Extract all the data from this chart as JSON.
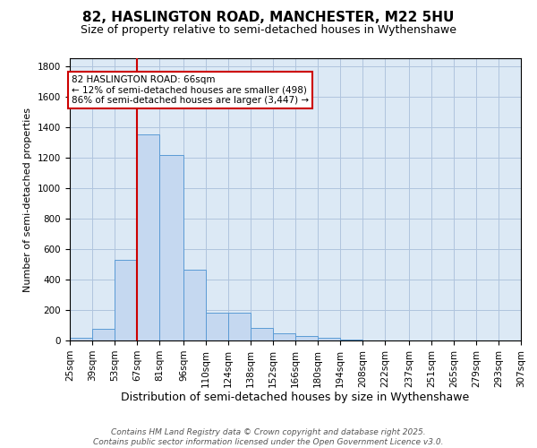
{
  "title": "82, HASLINGTON ROAD, MANCHESTER, M22 5HU",
  "subtitle": "Size of property relative to semi-detached houses in Wythenshawe",
  "xlabel": "Distribution of semi-detached houses by size in Wythenshawe",
  "ylabel": "Number of semi-detached properties",
  "footer_line1": "Contains HM Land Registry data © Crown copyright and database right 2025.",
  "footer_line2": "Contains public sector information licensed under the Open Government Licence v3.0.",
  "annotation_title": "82 HASLINGTON ROAD: 66sqm",
  "annotation_line1": "← 12% of semi-detached houses are smaller (498)",
  "annotation_line2": "86% of semi-detached houses are larger (3,447) →",
  "bin_edges": [
    25,
    39,
    53,
    67,
    81,
    96,
    110,
    124,
    138,
    152,
    166,
    180,
    194,
    208,
    222,
    237,
    251,
    265,
    279,
    293,
    307
  ],
  "bin_labels": [
    "25sqm",
    "39sqm",
    "53sqm",
    "67sqm",
    "81sqm",
    "96sqm",
    "110sqm",
    "124sqm",
    "138sqm",
    "152sqm",
    "166sqm",
    "180sqm",
    "194sqm",
    "208sqm",
    "222sqm",
    "237sqm",
    "251sqm",
    "265sqm",
    "279sqm",
    "293sqm",
    "307sqm"
  ],
  "bar_heights": [
    20,
    75,
    530,
    1350,
    1215,
    465,
    185,
    185,
    85,
    45,
    30,
    20,
    5,
    2,
    1,
    1,
    0,
    0,
    0,
    0
  ],
  "bar_color": "#c5d8f0",
  "bar_edge_color": "#5b9bd5",
  "vline_color": "#cc0000",
  "vline_x": 67,
  "annotation_box_edge_color": "#cc0000",
  "background_color": "#ffffff",
  "plot_bg_color": "#dce9f5",
  "grid_color": "#b0c4de",
  "ylim": [
    0,
    1850
  ],
  "yticks": [
    0,
    200,
    400,
    600,
    800,
    1000,
    1200,
    1400,
    1600,
    1800
  ],
  "title_fontsize": 11,
  "subtitle_fontsize": 9,
  "ylabel_fontsize": 8,
  "xlabel_fontsize": 9,
  "tick_fontsize": 7.5,
  "footer_fontsize": 6.5
}
